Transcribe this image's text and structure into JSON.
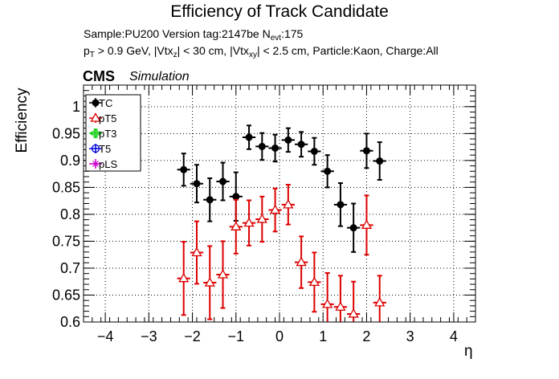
{
  "title": "Efficiency of Track Candidate",
  "subtitle": {
    "sample": "Sample:PU200   Version tag:2147be  N",
    "nevt_sub": "evt",
    "nevt_val": ":175",
    "pt_p": "p",
    "pt_sub": "T",
    "pt_rest": " > 0.9 GeV, |Vtx",
    "vz_sub": "z",
    "vz_rest": "| < 30 cm, |Vtx",
    "vxy_sub": "xy",
    "vxy_rest": "| < 2.5 cm, Particle:Kaon, Charge:All"
  },
  "cms_label": "CMS",
  "sim_label": "Simulation",
  "chart_data": {
    "type": "scatter",
    "title": "Efficiency of Track Candidate",
    "xlabel": "η",
    "ylabel": "Efficiency",
    "xlim": [
      -4.5,
      4.5
    ],
    "ylim": [
      0.6,
      1.04
    ],
    "xticks": [
      -4,
      -3,
      -2,
      -1,
      0,
      1,
      2,
      3,
      4
    ],
    "xtick_labels": [
      "−4",
      "−3",
      "−2",
      "−1",
      "0",
      "1",
      "2",
      "3",
      "4"
    ],
    "yticks": [
      0.6,
      0.65,
      0.7,
      0.75,
      0.8,
      0.85,
      0.9,
      0.95,
      1.0
    ],
    "ytick_labels": [
      "0.6",
      "0.65",
      "0.7",
      "0.75",
      "0.8",
      "0.85",
      "0.9",
      "0.95",
      "1"
    ],
    "grid": true,
    "legend_position": "top-left",
    "series": [
      {
        "name": "TC",
        "color": "#000000",
        "marker": "filled-circle",
        "x": [
          -2.2,
          -1.9,
          -1.6,
          -1.3,
          -1.0,
          -0.7,
          -0.4,
          -0.1,
          0.2,
          0.5,
          0.8,
          1.1,
          1.4,
          1.7,
          2.0,
          2.3
        ],
        "y": [
          0.883,
          0.857,
          0.827,
          0.861,
          0.833,
          0.943,
          0.926,
          0.923,
          0.938,
          0.93,
          0.917,
          0.88,
          0.818,
          0.775,
          0.918,
          0.899
        ],
        "yerr": [
          0.03,
          0.035,
          0.04,
          0.035,
          0.045,
          0.022,
          0.025,
          0.025,
          0.022,
          0.023,
          0.025,
          0.03,
          0.04,
          0.045,
          0.032,
          0.035
        ]
      },
      {
        "name": "pT5",
        "color": "#dd0000",
        "marker": "open-triangle",
        "x": [
          -2.2,
          -1.9,
          -1.6,
          -1.3,
          -1.0,
          -0.7,
          -0.4,
          -0.1,
          0.2,
          0.5,
          0.8,
          1.1,
          1.4,
          1.7,
          2.0,
          2.3
        ],
        "y": [
          0.681,
          0.729,
          0.673,
          0.688,
          0.777,
          0.784,
          0.791,
          0.808,
          0.818,
          0.711,
          0.674,
          0.633,
          0.628,
          0.615,
          0.78,
          0.636
        ],
        "yerr": [
          0.068,
          0.058,
          0.068,
          0.062,
          0.05,
          0.042,
          0.042,
          0.04,
          0.037,
          0.048,
          0.055,
          0.058,
          0.058,
          0.06,
          0.055,
          0.05
        ]
      },
      {
        "name": "pT3",
        "color": "#00cc00",
        "marker": "open-cross",
        "x": [],
        "y": []
      },
      {
        "name": "T5",
        "color": "#0000dd",
        "marker": "open-circle",
        "x": [],
        "y": []
      },
      {
        "name": "pLS",
        "color": "#cc00cc",
        "marker": "open-star",
        "x": [],
        "y": []
      }
    ]
  }
}
